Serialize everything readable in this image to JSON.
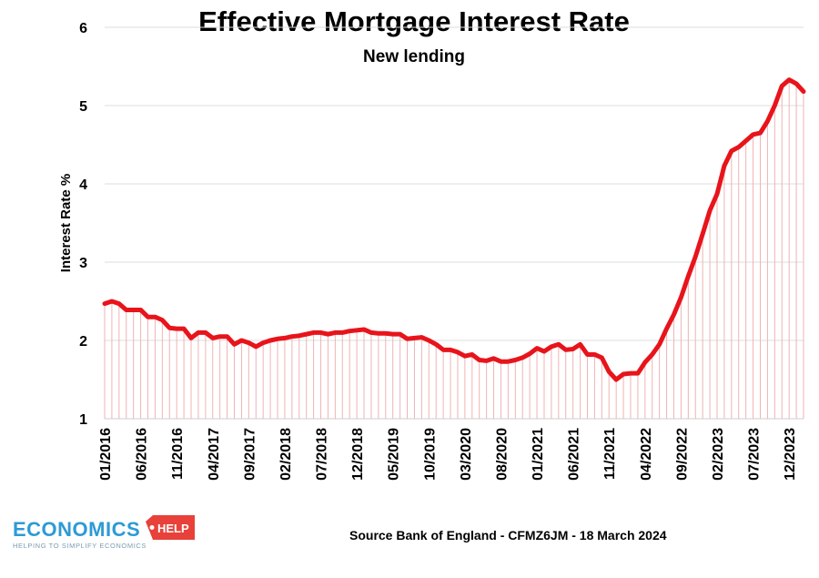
{
  "chart_data": {
    "type": "line",
    "title": "Effective Mortgage Interest Rate",
    "subtitle": "New lending",
    "ylabel": "Interest Rate %",
    "xlabel": "",
    "ylim": [
      1,
      6
    ],
    "yticks": [
      "1",
      "2",
      "3",
      "4",
      "5",
      "6"
    ],
    "x_tick_labels": [
      "01/2016",
      "06/2016",
      "11/2016",
      "04/2017",
      "09/2017",
      "02/2018",
      "07/2018",
      "12/2018",
      "05/2019",
      "10/2019",
      "03/2020",
      "08/2020",
      "01/2021",
      "06/2021",
      "11/2021",
      "04/2022",
      "09/2022",
      "02/2023",
      "07/2023",
      "12/2023"
    ],
    "grid": "horizontal",
    "series_color": "#e8141b",
    "drop_line_color": "#f0b3b3",
    "series": [
      {
        "values": [
          2.47,
          2.5,
          2.47,
          2.39,
          2.39,
          2.39,
          2.3,
          2.3,
          2.26,
          2.16,
          2.15,
          2.15,
          2.03,
          2.1,
          2.1,
          2.03,
          2.05,
          2.05,
          1.95,
          2.0,
          1.97,
          1.92,
          1.97,
          2.0,
          2.02,
          2.03,
          2.05,
          2.06,
          2.08,
          2.1,
          2.1,
          2.08,
          2.1,
          2.1,
          2.12,
          2.13,
          2.14,
          2.1,
          2.09,
          2.09,
          2.08,
          2.08,
          2.02,
          2.03,
          2.04,
          2.0,
          1.95,
          1.88,
          1.88,
          1.85,
          1.8,
          1.82,
          1.75,
          1.74,
          1.77,
          1.73,
          1.73,
          1.75,
          1.78,
          1.83,
          1.9,
          1.86,
          1.92,
          1.95,
          1.88,
          1.89,
          1.95,
          1.82,
          1.82,
          1.78,
          1.6,
          1.5,
          1.57,
          1.58,
          1.58,
          1.72,
          1.82,
          1.95,
          2.15,
          2.33,
          2.55,
          2.82,
          3.07,
          3.36,
          3.66,
          3.87,
          4.23,
          4.42,
          4.47,
          4.55,
          4.63,
          4.65,
          4.8,
          5.0,
          5.25,
          5.33,
          5.28,
          5.18
        ]
      }
    ]
  },
  "footer": {
    "source": "Source Bank of England - CFMZ6JM - 18 March 2024",
    "logo_main": "ECONOMICS",
    "logo_tag": "HELP",
    "logo_sub": "HELPING TO SIMPLIFY ECONOMICS"
  }
}
